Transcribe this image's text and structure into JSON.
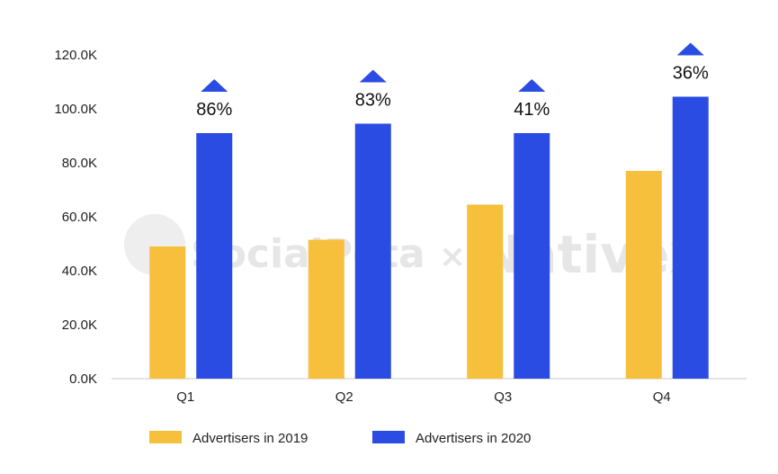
{
  "chart_data": {
    "type": "bar",
    "categories": [
      "Q1",
      "Q2",
      "Q3",
      "Q4"
    ],
    "series": [
      {
        "name": "Advertisers in 2019",
        "color": "#f6bf3c",
        "values": [
          49000,
          51500,
          64500,
          77000
        ]
      },
      {
        "name": "Advertisers in 2020",
        "color": "#2b4ce3",
        "values": [
          91000,
          94500,
          91000,
          104500
        ]
      }
    ],
    "growth_labels": [
      "86%",
      "83%",
      "41%",
      "36%"
    ],
    "growth_marker_color": "#2b4ce3",
    "y_ticks": [
      "0.0K",
      "20.0K",
      "40.0K",
      "60.0K",
      "80.0K",
      "100.0K",
      "120.0K"
    ],
    "ylim": [
      0,
      120000
    ],
    "grid": false,
    "legend_position": "bottom-left"
  },
  "watermark": {
    "left": "SocialPeta",
    "separator": "×",
    "right": "Nativex"
  }
}
